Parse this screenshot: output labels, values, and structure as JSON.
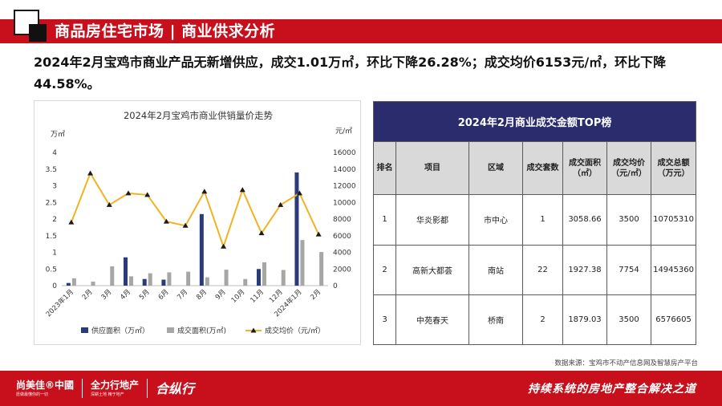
{
  "header": {
    "title": "商品房住宅市场 | 商业供求分析"
  },
  "summary": "2024年2月宝鸡市商业产品无新增供应，成交1.01万㎡，环比下降26.28%；成交均价6153元/㎡，环比下降44.58%。",
  "chart_data": {
    "type": "bar+line",
    "title": "2024年2月宝鸡市商业供销量价走势",
    "left_axis_unit": "万㎡",
    "right_axis_unit": "元/㎡",
    "left_ylim": [
      0,
      4
    ],
    "left_ticks": [
      "0",
      "0.5",
      "1",
      "1.5",
      "2",
      "2.5",
      "3",
      "3.5",
      "4"
    ],
    "right_ylim": [
      0,
      16000
    ],
    "right_ticks": [
      "0",
      "2000",
      "4000",
      "6000",
      "8000",
      "10000",
      "12000",
      "14000",
      "16000"
    ],
    "categories": [
      "2023年1月",
      "2月",
      "3月",
      "4月",
      "5月",
      "6月",
      "7月",
      "8月",
      "9月",
      "10月",
      "11月",
      "12月",
      "2024年1月",
      "2月"
    ],
    "series": [
      {
        "name": "供应面积（万㎡）",
        "type": "bar",
        "axis": "left",
        "color": "#2b3a7a",
        "values": [
          0.08,
          0,
          0,
          0.85,
          0.2,
          0.18,
          0,
          2.15,
          0,
          0,
          0.5,
          0,
          3.4,
          0
        ]
      },
      {
        "name": "成交面积(万㎡)",
        "type": "bar",
        "axis": "left",
        "color": "#a6a6a6",
        "values": [
          0.22,
          0.12,
          0.58,
          0.28,
          0.37,
          0.4,
          0.42,
          0.25,
          0.48,
          0.2,
          0.7,
          0.47,
          1.37,
          1.01
        ]
      },
      {
        "name": "成交均价（元/㎡）",
        "type": "line",
        "axis": "right",
        "color": "#f0b323",
        "values": [
          7600,
          13500,
          9700,
          11100,
          10900,
          7700,
          7200,
          11300,
          4700,
          11500,
          6300,
          9700,
          11100,
          6153
        ]
      }
    ]
  },
  "table": {
    "title": "2024年2月商业成交金额TOP榜",
    "headers": [
      "排名",
      "项目",
      "区域",
      "成交套数",
      "成交面积（㎡）",
      "成交均价（元/㎡）",
      "成交总额（万元）"
    ],
    "rows": [
      [
        "1",
        "华炎影都",
        "市中心",
        "1",
        "3058.66",
        "3500",
        "10705310"
      ],
      [
        "2",
        "高新大都荟",
        "南站",
        "22",
        "1927.38",
        "7754",
        "14945360"
      ],
      [
        "3",
        "中苑春天",
        "桥南",
        "2",
        "1879.03",
        "3500",
        "6576605"
      ]
    ]
  },
  "source": "数据来源：宝鸡市不动产信息网及智慧房产平台",
  "footer": {
    "logo1": "尚美佳®中國",
    "logo1_sub": "愿做最懂你的一切",
    "logo2": "全力行地产",
    "logo2_sub": "深耕土地 精于地产",
    "logo3": "合纵行",
    "slogan": "持续系统的房地产整合解决之道"
  }
}
